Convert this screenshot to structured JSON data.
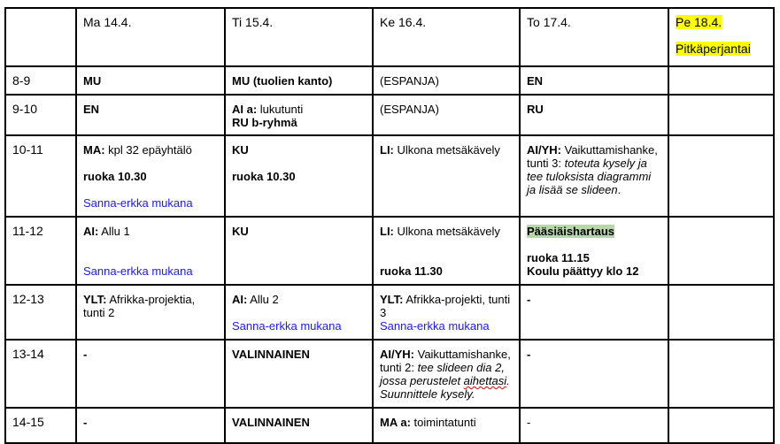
{
  "colors": {
    "link_blue": "#1a1aff",
    "highlight_yellow": "#ffff00",
    "highlight_green": "#b6d7a8"
  },
  "header": [
    [
      [
        {
          "t": ""
        }
      ]
    ],
    [
      [
        {
          "t": "Ma 14.4."
        }
      ]
    ],
    [
      [
        {
          "t": "Ti 15.4."
        }
      ]
    ],
    [
      [
        {
          "t": "Ke 16.4."
        }
      ]
    ],
    [
      [
        {
          "t": "To 17.4."
        }
      ]
    ],
    [
      [
        {
          "t": "Pe 18.4.",
          "hl": "yellow"
        }
      ],
      [],
      [
        {
          "t": "Pitkäperjantai",
          "hl": "yellow"
        }
      ]
    ]
  ],
  "rows": [
    {
      "time": "8-9",
      "cells": [
        [
          [
            {
              "t": "MU",
              "b": true
            }
          ]
        ],
        [
          [
            {
              "t": "MU (tuolien kanto)",
              "b": true
            }
          ]
        ],
        [
          [
            {
              "t": "(ESPANJA)"
            }
          ]
        ],
        [
          [
            {
              "t": "EN",
              "b": true
            }
          ]
        ],
        []
      ]
    },
    {
      "time": "9-10",
      "cells": [
        [
          [
            {
              "t": "EN",
              "b": true
            }
          ]
        ],
        [
          [
            {
              "t": "AI a:",
              "b": true
            },
            {
              "t": " lukutunti"
            }
          ],
          [
            {
              "t": "RU b-ryhmä",
              "b": true
            }
          ]
        ],
        [
          [
            {
              "t": "(ESPANJA)"
            }
          ]
        ],
        [
          [
            {
              "t": "RU",
              "b": true
            }
          ]
        ],
        []
      ]
    },
    {
      "time": "10-11",
      "cells": [
        [
          [
            {
              "t": "MA:",
              "b": true
            },
            {
              "t": " kpl 32 epäyhtälö"
            }
          ],
          [],
          [
            {
              "t": "ruoka 10.30",
              "b": true
            }
          ],
          [],
          [
            {
              "t": "Sanna-erkka mukana",
              "c": "blue"
            }
          ]
        ],
        [
          [
            {
              "t": "KU",
              "b": true
            }
          ],
          [],
          [
            {
              "t": "ruoka 10.30",
              "b": true
            }
          ]
        ],
        [
          [
            {
              "t": "LI:",
              "b": true
            },
            {
              "t": " Ulkona metsäkävely"
            }
          ]
        ],
        [
          [
            {
              "t": "AI/YH:",
              "b": true
            },
            {
              "t": " Vaikuttamishanke, tunti 3: "
            },
            {
              "t": "toteuta kysely ja tee tuloksista diagrammi ja lisää se slideen",
              "i": true
            },
            {
              "t": "."
            }
          ]
        ],
        []
      ]
    },
    {
      "time": "11-12",
      "cells": [
        [
          [
            {
              "t": "AI:",
              "b": true
            },
            {
              "t": " Allu 1"
            }
          ],
          [],
          [],
          [
            {
              "t": "Sanna-erkka mukana",
              "c": "blue"
            }
          ]
        ],
        [
          [
            {
              "t": "KU",
              "b": true
            }
          ]
        ],
        [
          [
            {
              "t": "LI:",
              "b": true
            },
            {
              "t": " Ulkona metsäkävely"
            }
          ],
          [],
          [],
          [
            {
              "t": "ruoka 11.30",
              "b": true
            }
          ]
        ],
        [
          [
            {
              "t": "Pääsiäishartaus",
              "b": true,
              "hl": "green"
            }
          ],
          [],
          [
            {
              "t": "ruoka 11.15",
              "b": true
            }
          ],
          [
            {
              "t": "Koulu päättyy klo 12",
              "b": true
            }
          ]
        ],
        []
      ]
    },
    {
      "time": "12-13",
      "cells": [
        [
          [
            {
              "t": "YLT:",
              "b": true
            },
            {
              "t": " Afrikka-projektia, tunti 2"
            }
          ]
        ],
        [
          [
            {
              "t": "AI:",
              "b": true
            },
            {
              "t": " Allu 2"
            }
          ],
          [],
          [
            {
              "t": "Sanna-erkka mukana",
              "c": "blue"
            }
          ]
        ],
        [
          [
            {
              "t": "YLT:",
              "b": true
            },
            {
              "t": " Afrikka-projekti, tunti 3"
            }
          ],
          [
            {
              "t": "Sanna-erkka mukana",
              "c": "blue"
            }
          ]
        ],
        [
          [
            {
              "t": "-",
              "b": true
            }
          ]
        ],
        []
      ]
    },
    {
      "time": "13-14",
      "cells": [
        [
          [
            {
              "t": "-",
              "b": true
            }
          ]
        ],
        [
          [
            {
              "t": "VALINNAINEN",
              "b": true
            }
          ]
        ],
        [
          [
            {
              "t": "AI/YH:",
              "b": true
            },
            {
              "t": " Vaikuttamishanke, tunti 2: "
            },
            {
              "t": "tee slideen dia 2, jossa perustelet ",
              "i": true
            },
            {
              "t": "aihettasi",
              "i": true,
              "spell": true
            },
            {
              "t": ". Suunnittele kysely.",
              "i": true
            }
          ]
        ],
        [
          [
            {
              "t": "-",
              "b": true
            }
          ]
        ],
        []
      ]
    },
    {
      "time": "14-15",
      "cells": [
        [
          [
            {
              "t": "-",
              "b": true
            }
          ]
        ],
        [
          [
            {
              "t": "VALINNAINEN",
              "b": true
            }
          ]
        ],
        [
          [
            {
              "t": "MA a:",
              "b": true
            },
            {
              "t": " toimintatunti"
            }
          ]
        ],
        [
          [
            {
              "t": "-"
            }
          ]
        ],
        []
      ]
    }
  ]
}
